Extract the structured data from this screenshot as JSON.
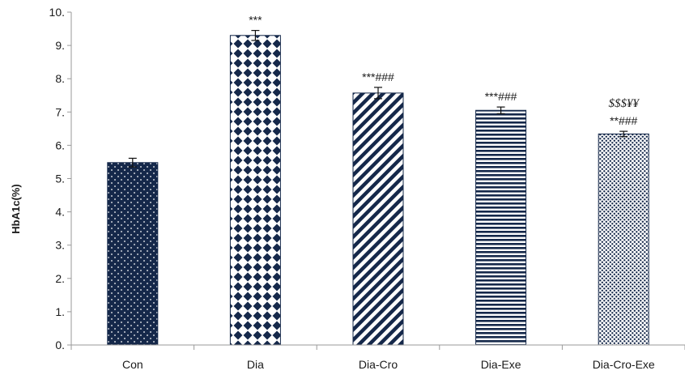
{
  "chart_data": {
    "type": "bar",
    "title": "",
    "xlabel": "",
    "ylabel": "HbA1c(%)",
    "ylim": [
      0,
      10
    ],
    "yticks": [
      "0.",
      "1.",
      "2.",
      "3.",
      "4.",
      "5.",
      "6.",
      "7.",
      "8.",
      "9.",
      "10."
    ],
    "grid": false,
    "categories": [
      "Con",
      "Dia",
      "Dia-Cro",
      "Dia-Exe",
      "Dia-Cro-Exe"
    ],
    "values": [
      5.48,
      9.3,
      7.57,
      7.05,
      6.34
    ],
    "errors": [
      0.13,
      0.15,
      0.17,
      0.1,
      0.08
    ],
    "patterns": [
      "dots",
      "diamonds",
      "diagonal-stripes",
      "horizontal-stripes",
      "dense-dots"
    ],
    "bar_color": "#15284a",
    "annotations": [
      {
        "category": "Dia",
        "lines": [
          "***"
        ]
      },
      {
        "category": "Dia-Cro",
        "lines": [
          "***###"
        ]
      },
      {
        "category": "Dia-Exe",
        "lines": [
          "***###"
        ]
      },
      {
        "category": "Dia-Cro-Exe",
        "lines": [
          "$$$¥¥",
          "**###"
        ]
      }
    ]
  }
}
